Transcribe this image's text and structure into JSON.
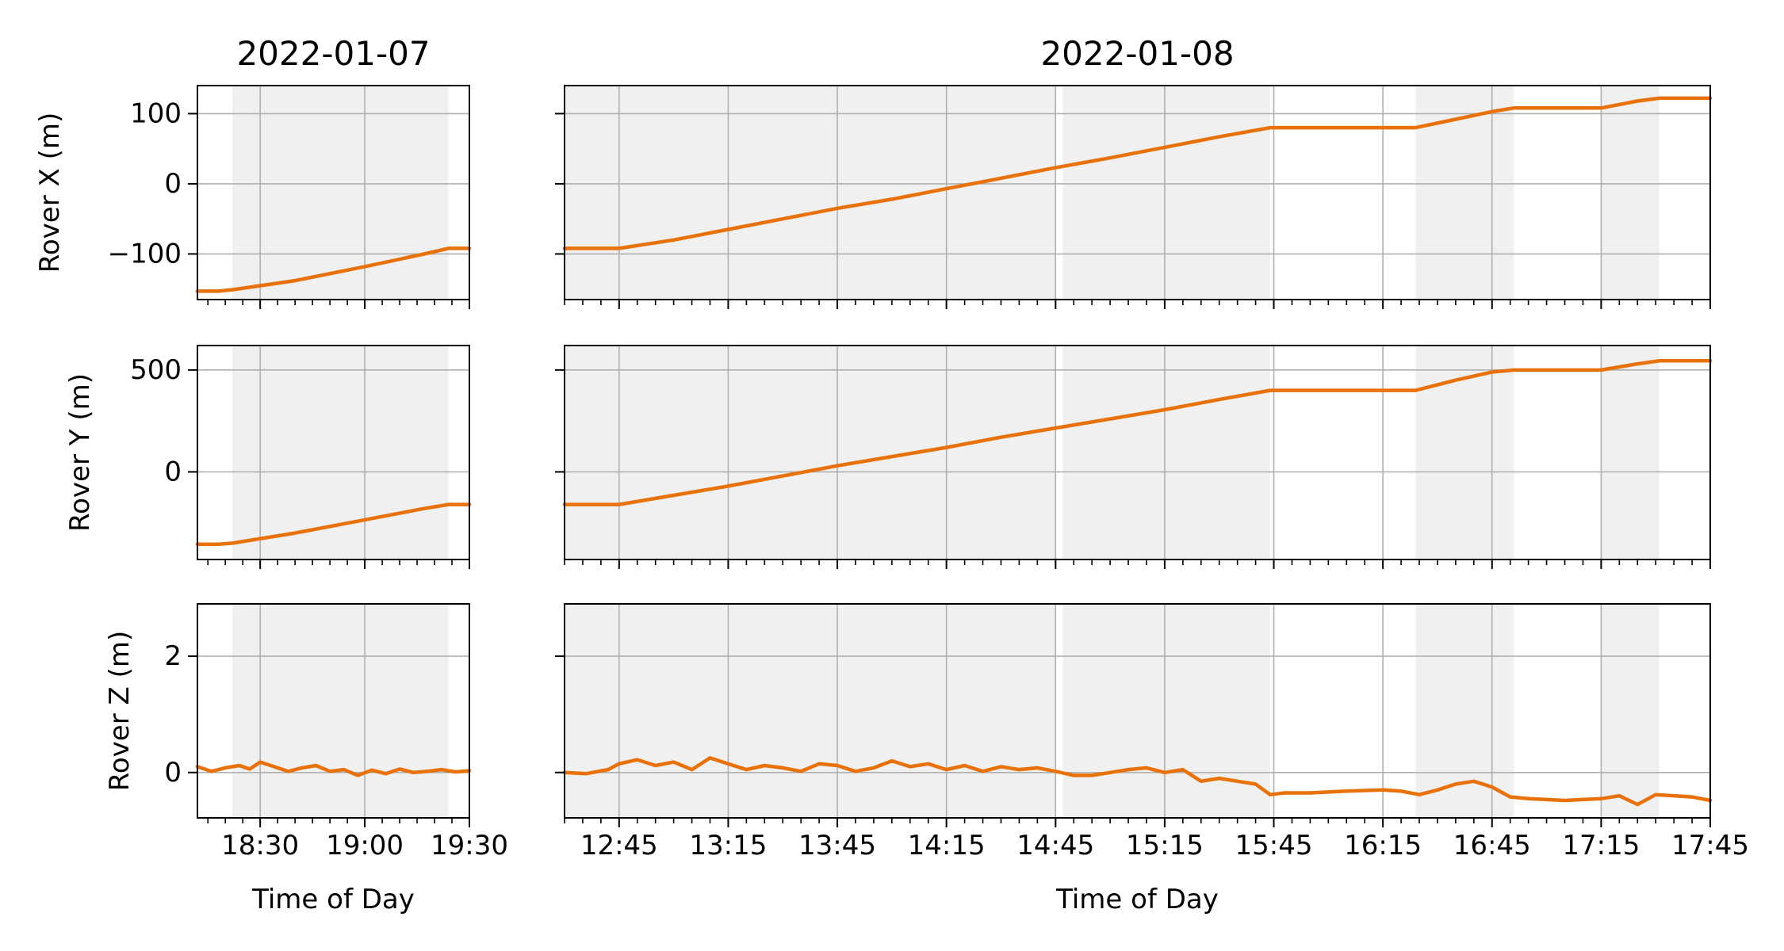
{
  "chart_data": {
    "type": "line",
    "line_color": "#e8710a",
    "shade_color": "#f0f0f0",
    "grid": true,
    "panels": {
      "left": {
        "title": "2022-01-07",
        "xlabel": "Time of Day",
        "xlim": [
          "18:12",
          "19:30"
        ],
        "xticks": [
          "18:30",
          "19:00",
          "19:30"
        ],
        "shaded_intervals": [
          [
            "18:22",
            "19:24"
          ]
        ]
      },
      "right": {
        "title": "2022-01-08",
        "xlabel": "Time of Day",
        "xlim": [
          "12:30",
          "17:45"
        ],
        "xticks": [
          "12:45",
          "13:15",
          "13:45",
          "14:15",
          "14:45",
          "15:15",
          "15:45",
          "16:15",
          "16:45",
          "17:15",
          "17:45"
        ],
        "shaded_intervals": [
          [
            "12:30",
            "14:45"
          ],
          [
            "14:47",
            "15:44"
          ],
          [
            "16:24",
            "16:51"
          ],
          [
            "17:15",
            "17:31"
          ]
        ]
      }
    },
    "rows": [
      {
        "ylabel": "Rover X (m)",
        "ylim": [
          -165,
          140
        ],
        "yticks": [
          100,
          0,
          -100
        ],
        "ytick_labels": [
          "100",
          "0",
          "−100"
        ],
        "series": [
          {
            "panel": "left",
            "x": [
              "18:12",
              "18:18",
              "18:22",
              "18:40",
              "19:00",
              "19:17",
              "19:24",
              "19:30"
            ],
            "y": [
              -153,
              -153,
              -151,
              -138,
              -118,
              -100,
              -92,
              -92
            ]
          },
          {
            "panel": "right",
            "x": [
              "12:30",
              "12:45",
              "13:00",
              "13:15",
              "13:30",
              "13:45",
              "14:00",
              "14:15",
              "14:30",
              "14:45",
              "15:00",
              "15:15",
              "15:30",
              "15:44",
              "16:00",
              "16:15",
              "16:24",
              "16:35",
              "16:45",
              "16:51",
              "17:05",
              "17:15",
              "17:25",
              "17:31",
              "17:45"
            ],
            "y": [
              -92,
              -92,
              -80,
              -65,
              -50,
              -35,
              -22,
              -7,
              8,
              23,
              37,
              52,
              67,
              80,
              80,
              80,
              80,
              92,
              103,
              108,
              108,
              108,
              118,
              122,
              122
            ]
          }
        ]
      },
      {
        "ylabel": "Rover Y (m)",
        "ylim": [
          -430,
          620
        ],
        "yticks": [
          500,
          0
        ],
        "ytick_labels": [
          "500",
          "0"
        ],
        "series": [
          {
            "panel": "left",
            "x": [
              "18:12",
              "18:18",
              "18:22",
              "18:40",
              "19:00",
              "19:17",
              "19:24",
              "19:30"
            ],
            "y": [
              -355,
              -355,
              -350,
              -300,
              -235,
              -180,
              -160,
              -160
            ]
          },
          {
            "panel": "right",
            "x": [
              "12:30",
              "12:45",
              "13:00",
              "13:15",
              "13:30",
              "13:45",
              "14:00",
              "14:15",
              "14:30",
              "14:45",
              "15:00",
              "15:15",
              "15:30",
              "15:44",
              "16:00",
              "16:15",
              "16:24",
              "16:35",
              "16:45",
              "16:51",
              "17:05",
              "17:15",
              "17:25",
              "17:31",
              "17:45"
            ],
            "y": [
              -160,
              -160,
              -115,
              -70,
              -20,
              30,
              75,
              120,
              170,
              215,
              260,
              305,
              355,
              400,
              400,
              400,
              400,
              450,
              490,
              500,
              500,
              500,
              530,
              545,
              545
            ]
          }
        ]
      },
      {
        "ylabel": "Rover Z (m)",
        "ylim": [
          -0.78,
          2.9
        ],
        "yticks": [
          2,
          0
        ],
        "ytick_labels": [
          "2",
          "0"
        ],
        "series": [
          {
            "panel": "left",
            "x": [
              "18:12",
              "18:16",
              "18:20",
              "18:24",
              "18:27",
              "18:30",
              "18:34",
              "18:38",
              "18:42",
              "18:46",
              "18:50",
              "18:54",
              "18:58",
              "19:02",
              "19:06",
              "19:10",
              "19:14",
              "19:18",
              "19:22",
              "19:26",
              "19:30"
            ],
            "y": [
              0.1,
              0.02,
              0.08,
              0.12,
              0.06,
              0.18,
              0.1,
              0.02,
              0.08,
              0.12,
              0.02,
              0.05,
              -0.05,
              0.04,
              -0.02,
              0.06,
              0.0,
              0.02,
              0.05,
              0.01,
              0.03
            ]
          },
          {
            "panel": "right",
            "x": [
              "12:30",
              "12:36",
              "12:42",
              "12:45",
              "12:50",
              "12:55",
              "13:00",
              "13:05",
              "13:10",
              "13:15",
              "13:20",
              "13:25",
              "13:30",
              "13:35",
              "13:40",
              "13:45",
              "13:50",
              "13:55",
              "14:00",
              "14:05",
              "14:10",
              "14:15",
              "14:20",
              "14:25",
              "14:30",
              "14:35",
              "14:40",
              "14:45",
              "14:50",
              "14:55",
              "15:00",
              "15:05",
              "15:10",
              "15:15",
              "15:20",
              "15:25",
              "15:30",
              "15:35",
              "15:40",
              "15:44",
              "15:48",
              "15:55",
              "16:05",
              "16:15",
              "16:20",
              "16:25",
              "16:30",
              "16:35",
              "16:40",
              "16:45",
              "16:50",
              "16:55",
              "17:05",
              "17:15",
              "17:20",
              "17:25",
              "17:30",
              "17:35",
              "17:40",
              "17:45"
            ],
            "y": [
              0.0,
              -0.02,
              0.05,
              0.15,
              0.22,
              0.12,
              0.18,
              0.05,
              0.25,
              0.15,
              0.05,
              0.12,
              0.08,
              0.02,
              0.15,
              0.12,
              0.02,
              0.08,
              0.2,
              0.1,
              0.15,
              0.05,
              0.12,
              0.02,
              0.1,
              0.05,
              0.08,
              0.02,
              -0.05,
              -0.05,
              0.0,
              0.05,
              0.08,
              0.0,
              0.05,
              -0.15,
              -0.1,
              -0.15,
              -0.2,
              -0.38,
              -0.35,
              -0.35,
              -0.32,
              -0.3,
              -0.32,
              -0.38,
              -0.3,
              -0.2,
              -0.15,
              -0.25,
              -0.42,
              -0.45,
              -0.48,
              -0.45,
              -0.4,
              -0.55,
              -0.38,
              -0.4,
              -0.42,
              -0.48
            ]
          }
        ]
      }
    ]
  }
}
